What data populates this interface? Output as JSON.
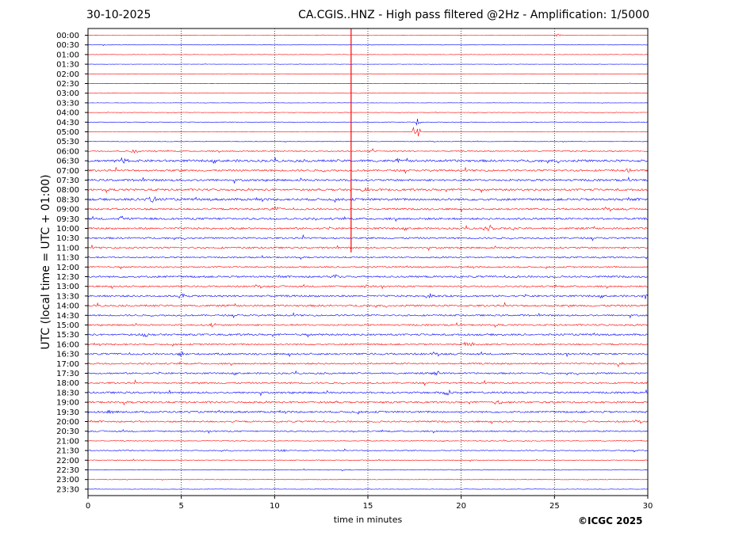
{
  "header": {
    "date": "30-10-2025",
    "title": "CA.CGIS..HNZ - High pass filtered @2Hz - Amplification: 1/5000"
  },
  "copyright": "©ICGC 2025",
  "colors": {
    "even_row": "#ff0000",
    "odd_row": "#0000ff",
    "grid": "#000000"
  },
  "chart_data": {
    "type": "line",
    "xlabel": "time in minutes",
    "ylabel": "UTC (local time = UTC + 01:00)",
    "xlim": [
      0,
      30
    ],
    "xticks": [
      0,
      5,
      10,
      15,
      20,
      25,
      30
    ],
    "grid": "vertical dotted lines at each x tick",
    "row_labels": [
      "00:00",
      "00:30",
      "01:00",
      "01:30",
      "02:00",
      "02:30",
      "03:00",
      "03:30",
      "04:00",
      "04:30",
      "05:00",
      "05:30",
      "06:00",
      "06:30",
      "07:00",
      "07:30",
      "08:00",
      "08:30",
      "09:00",
      "09:30",
      "10:00",
      "10:30",
      "11:00",
      "11:30",
      "12:00",
      "12:30",
      "13:00",
      "13:30",
      "14:00",
      "14:30",
      "15:00",
      "15:30",
      "16:00",
      "16:30",
      "17:00",
      "17:30",
      "18:00",
      "18:30",
      "19:00",
      "19:30",
      "20:00",
      "20:30",
      "21:00",
      "21:30",
      "22:00",
      "22:30",
      "23:00",
      "23:30"
    ],
    "row_noise": [
      0.03,
      0.03,
      0.04,
      0.03,
      0.03,
      0.04,
      0.03,
      0.03,
      0.05,
      0.05,
      0.04,
      0.06,
      0.12,
      0.25,
      0.2,
      0.22,
      0.22,
      0.25,
      0.2,
      0.22,
      0.2,
      0.18,
      0.18,
      0.15,
      0.15,
      0.2,
      0.17,
      0.2,
      0.2,
      0.17,
      0.17,
      0.2,
      0.17,
      0.2,
      0.17,
      0.17,
      0.17,
      0.2,
      0.2,
      0.2,
      0.17,
      0.15,
      0.08,
      0.1,
      0.08,
      0.08,
      0.06,
      0.05
    ],
    "events": [
      {
        "row": 0,
        "x": 14.1,
        "amp": -12,
        "dur": 0.05,
        "note": "large vertical spike spanning rows 0 to 22"
      },
      {
        "row": 9,
        "x": 17.7,
        "amp": 1.5,
        "dur": 0.15
      },
      {
        "row": 10,
        "x": 17.6,
        "amp": 2.8,
        "dur": 0.25
      },
      {
        "row": 0,
        "x": 25.2,
        "amp": 0.3,
        "dur": 0.3
      },
      {
        "row": 1,
        "x": 0.9,
        "amp": 0.2,
        "dur": 0.2
      },
      {
        "row": 12,
        "x": 2.5,
        "amp": 0.4,
        "dur": 0.4
      },
      {
        "row": 12,
        "x": 15.3,
        "amp": 0.6,
        "dur": 0.3
      },
      {
        "row": 13,
        "x": 1.8,
        "amp": 0.6,
        "dur": 0.5
      },
      {
        "row": 13,
        "x": 16.5,
        "amp": 0.5,
        "dur": 0.3
      },
      {
        "row": 14,
        "x": 29.0,
        "amp": 0.5,
        "dur": 0.4
      },
      {
        "row": 16,
        "x": 14.8,
        "amp": 0.7,
        "dur": 0.3
      },
      {
        "row": 17,
        "x": 3.4,
        "amp": 0.7,
        "dur": 0.6
      },
      {
        "row": 18,
        "x": 10.0,
        "amp": 0.5,
        "dur": 0.4
      },
      {
        "row": 19,
        "x": 1.8,
        "amp": 0.6,
        "dur": 0.4
      },
      {
        "row": 20,
        "x": 21.5,
        "amp": 0.6,
        "dur": 0.5
      },
      {
        "row": 25,
        "x": 13.2,
        "amp": 0.5,
        "dur": 0.4
      },
      {
        "row": 26,
        "x": 14.9,
        "amp": 0.6,
        "dur": 0.4
      },
      {
        "row": 27,
        "x": 5.0,
        "amp": 0.5,
        "dur": 0.4
      },
      {
        "row": 27,
        "x": 18.3,
        "amp": 0.5,
        "dur": 0.4
      },
      {
        "row": 27,
        "x": 29.9,
        "amp": 0.6,
        "dur": 0.3
      },
      {
        "row": 30,
        "x": 6.7,
        "amp": 0.5,
        "dur": 0.4
      },
      {
        "row": 31,
        "x": 3.0,
        "amp": 0.5,
        "dur": 0.4
      },
      {
        "row": 32,
        "x": 20.5,
        "amp": 0.6,
        "dur": 0.5
      },
      {
        "row": 33,
        "x": 5.0,
        "amp": 0.5,
        "dur": 0.4
      },
      {
        "row": 34,
        "x": 28.4,
        "amp": 0.6,
        "dur": 0.3
      },
      {
        "row": 35,
        "x": 18.7,
        "amp": 0.5,
        "dur": 0.4
      },
      {
        "row": 37,
        "x": 19.2,
        "amp": 0.6,
        "dur": 0.5
      },
      {
        "row": 38,
        "x": 22.0,
        "amp": 0.5,
        "dur": 0.4
      },
      {
        "row": 39,
        "x": 1.2,
        "amp": 0.6,
        "dur": 0.3
      },
      {
        "row": 43,
        "x": 10.4,
        "amp": 0.5,
        "dur": 0.3
      }
    ]
  }
}
